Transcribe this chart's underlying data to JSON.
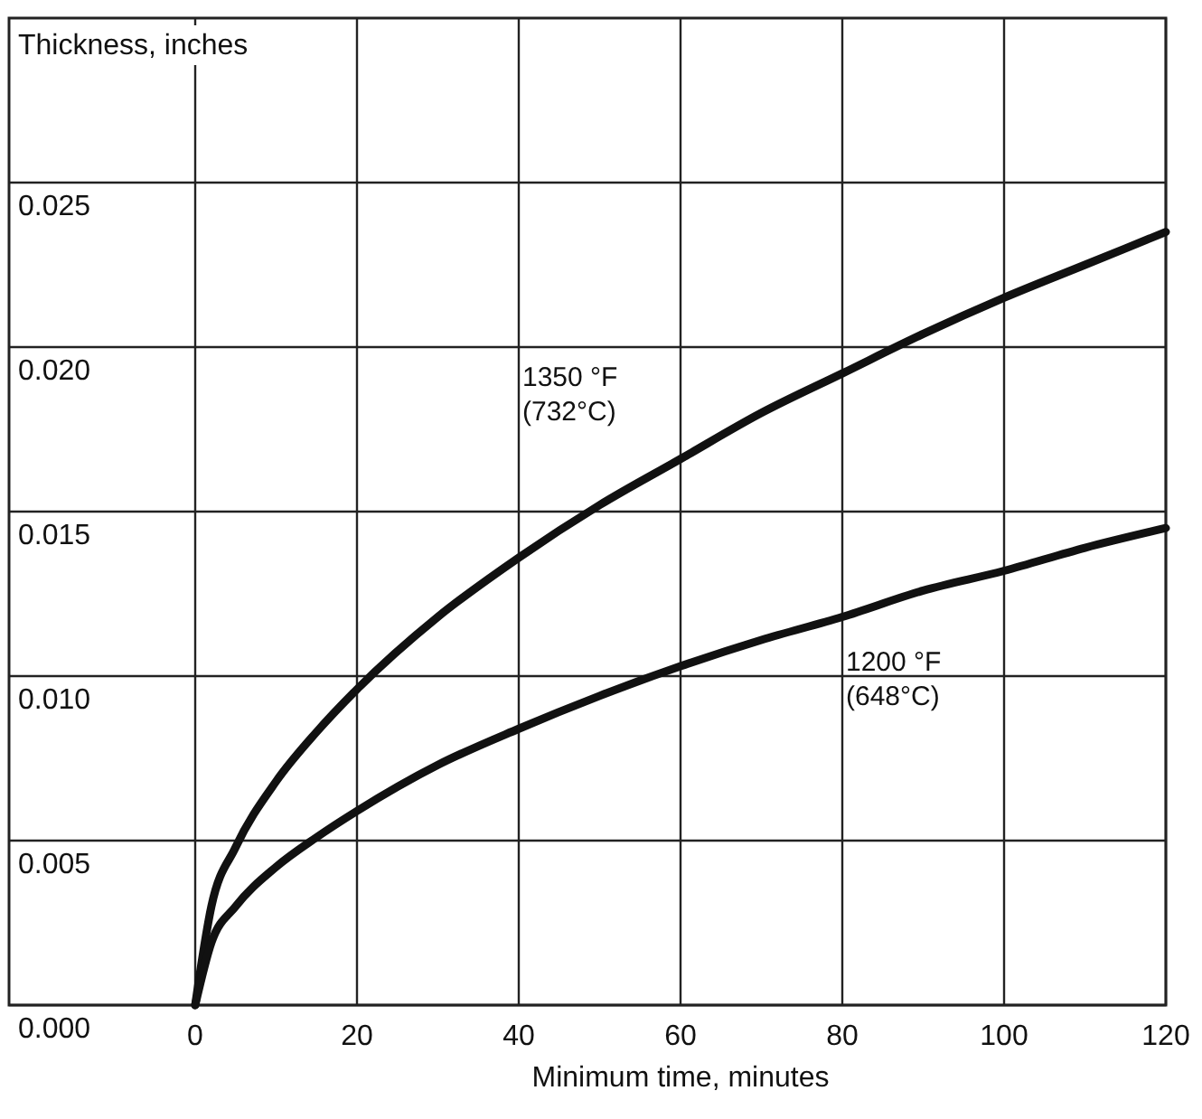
{
  "chart_data": {
    "type": "line",
    "xlabel": "Minimum time, minutes",
    "ylabel": "Thickness, inches",
    "x": [
      0,
      2,
      5,
      10,
      15,
      20,
      30,
      40,
      50,
      60,
      70,
      80,
      90,
      100,
      110,
      120
    ],
    "series": [
      {
        "name": "1350 °F\n(732°C)",
        "color": "#111111",
        "values": [
          0,
          0.003,
          0.0048,
          0.0068,
          0.0083,
          0.0096,
          0.0118,
          0.0136,
          0.0152,
          0.0166,
          0.018,
          0.0192,
          0.0204,
          0.0215,
          0.0225,
          0.0235
        ]
      },
      {
        "name": "1200 °F\n(648°C)",
        "color": "#111111",
        "values": [
          0,
          0.0019,
          0.003,
          0.0042,
          0.0051,
          0.0059,
          0.0073,
          0.0084,
          0.0094,
          0.0103,
          0.0111,
          0.0118,
          0.0126,
          0.0132,
          0.0139,
          0.0145
        ]
      }
    ],
    "xlim": [
      0,
      120
    ],
    "xticks": [
      0,
      20,
      40,
      60,
      80,
      100,
      120
    ],
    "ylim": [
      0,
      0.03
    ],
    "yticks": [
      {
        "value": 0,
        "label": "0.000"
      },
      {
        "value": 0.005,
        "label": "0.005"
      },
      {
        "value": 0.01,
        "label": "0.010"
      },
      {
        "value": 0.015,
        "label": "0.015"
      },
      {
        "value": 0.02,
        "label": "0.020"
      },
      {
        "value": 0.025,
        "label": "0.025"
      }
    ],
    "grid": true,
    "line_style": "solid",
    "marker": "none"
  }
}
